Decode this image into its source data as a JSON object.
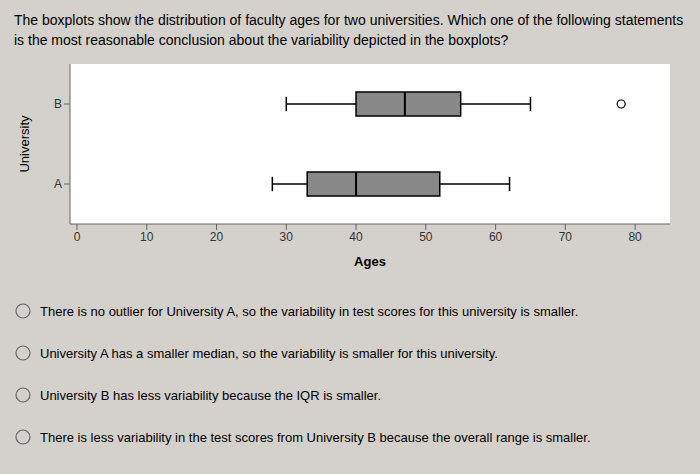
{
  "chart_data": {
    "type": "box",
    "orientation": "horizontal",
    "title": "The boxplots show the distribution of faculty ages for two universities. Which one of the following statements is the most reasonable conclusion about the variability depicted in the boxplots?",
    "x_label": "Ages",
    "y_label": "University",
    "categories": [
      "A",
      "B"
    ],
    "whisker_low": [
      28,
      30
    ],
    "q1": [
      33,
      40
    ],
    "median": [
      40,
      47
    ],
    "q3": [
      52,
      55
    ],
    "whisker_high": [
      62,
      65
    ],
    "outliers": [
      [],
      [
        78
      ]
    ],
    "color": "#888888",
    "xlim": [
      -1,
      85
    ],
    "xticks": [
      0,
      10,
      20,
      30,
      40,
      50,
      60,
      70,
      80
    ],
    "grid": false,
    "annotations": [
      "There is no outlier for University A, so the variability in test scores for this university is smaller.",
      "University A has a smaller median, so the variability is smaller for this university.",
      "University B has less variability because the IQR is smaller.",
      "There is less variability in the test scores from University B because the overall range is smaller."
    ]
  }
}
